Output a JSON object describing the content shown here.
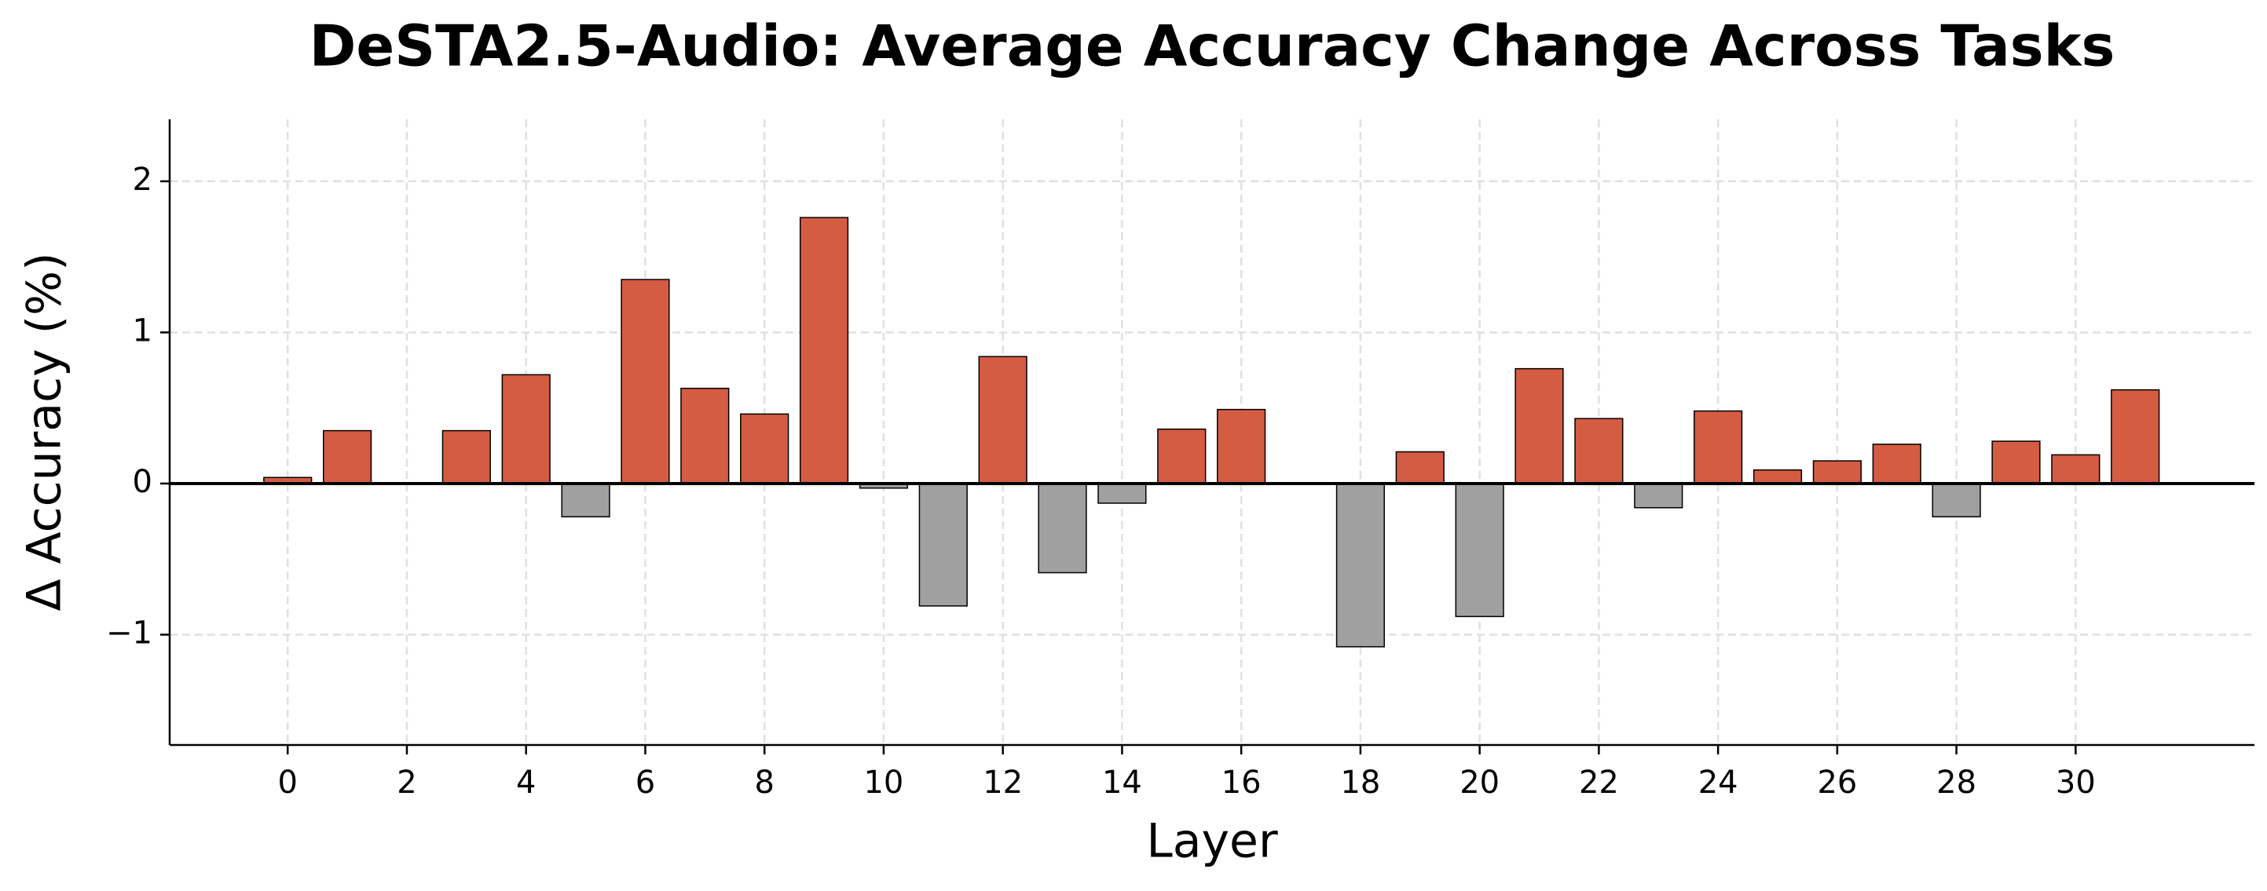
{
  "chart_data": {
    "type": "bar",
    "title": "DeSTA2.5-Audio: Average Accuracy Change Across Tasks",
    "x_label": "Layer",
    "y_label": "Δ Accuracy (%)",
    "x": [
      0,
      1,
      2,
      3,
      4,
      5,
      6,
      7,
      8,
      9,
      10,
      11,
      12,
      13,
      14,
      15,
      16,
      17,
      18,
      19,
      20,
      21,
      22,
      23,
      24,
      25,
      26,
      27,
      28,
      29,
      30,
      31
    ],
    "values": [
      0.04,
      0.35,
      0,
      0.35,
      0.72,
      -0.22,
      1.35,
      0.63,
      0.46,
      1.76,
      -0.03,
      -0.81,
      0.84,
      -0.59,
      -0.13,
      0.36,
      0.49,
      0,
      -1.08,
      0.21,
      -0.88,
      0.76,
      0.43,
      -0.16,
      0.48,
      0.09,
      0.15,
      0.26,
      -0.22,
      0.28,
      0.19,
      0.62
    ],
    "positive_color": "#d45c43",
    "negative_color": "#a0a0a0",
    "xlim": [
      -1.98,
      33
    ],
    "xticks": [
      0,
      2,
      4,
      6,
      8,
      10,
      12,
      14,
      16,
      18,
      20,
      22,
      24,
      26,
      28,
      30
    ],
    "ylim": [
      -1.73,
      2.41
    ],
    "yticks": [
      -1,
      0,
      1,
      2
    ],
    "grid": true
  }
}
